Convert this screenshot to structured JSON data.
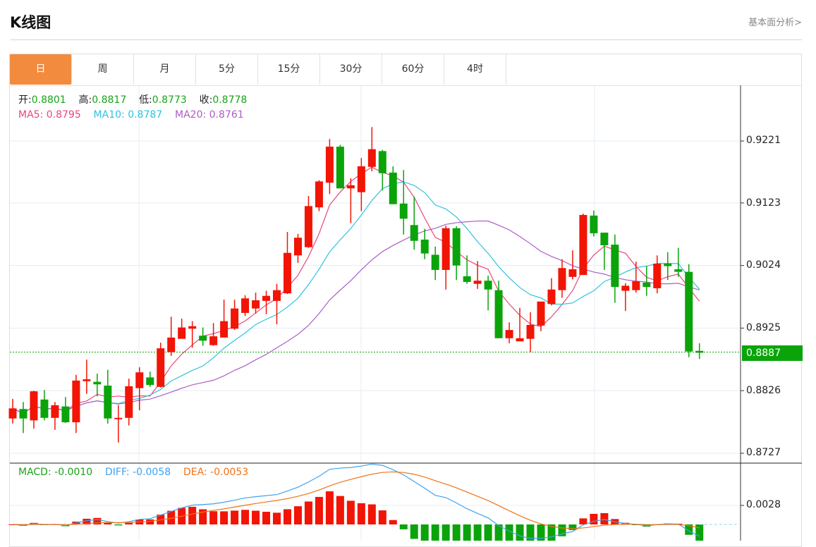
{
  "header": {
    "title": "K线图",
    "fundamental_link": "基本面分析>"
  },
  "tabs": [
    {
      "label": "日",
      "active": true
    },
    {
      "label": "周"
    },
    {
      "label": "月"
    },
    {
      "label": "5分"
    },
    {
      "label": "15分"
    },
    {
      "label": "30分"
    },
    {
      "label": "60分"
    },
    {
      "label": "4时"
    }
  ],
  "info": {
    "open_label": "开:",
    "open": "0.8801",
    "high_label": "高:",
    "high": "0.8817",
    "low_label": "低:",
    "low": "0.8773",
    "close_label": "收:",
    "close": "0.8778",
    "ma5_label": "MA5: ",
    "ma5": "0.8795",
    "ma10_label": "MA10: ",
    "ma10": "0.8787",
    "ma20_label": "MA20: ",
    "ma20": "0.8761"
  },
  "macd_info": {
    "macd_label": "MACD: ",
    "macd": "-0.0010",
    "diff_label": "DIFF: ",
    "diff": "-0.0058",
    "dea_label": "DEA: ",
    "dea": "-0.0053"
  },
  "colors": {
    "up": "#f21405",
    "down": "#0aa40a",
    "ma5": "#e8467c",
    "ma10": "#2ec3de",
    "ma20": "#b05cc6",
    "diff": "#3fa2ee",
    "dea": "#f07214",
    "accent": "#f38b3e"
  },
  "chart_data": {
    "type": "candlestick",
    "price_ticks": [
      "0.9221",
      "0.9123",
      "0.9024",
      "0.8925",
      "0.8826",
      "0.8727"
    ],
    "macd_ticks": [
      "0.0028"
    ],
    "current_price": "0.8887",
    "ylim": [
      0.8727,
      0.9221
    ],
    "ohlc": [
      [
        0.8782,
        0.8813,
        0.8774,
        0.8798
      ],
      [
        0.8797,
        0.8808,
        0.8759,
        0.8782
      ],
      [
        0.8779,
        0.8826,
        0.8766,
        0.8825
      ],
      [
        0.8812,
        0.8827,
        0.8779,
        0.8783
      ],
      [
        0.8783,
        0.8808,
        0.8764,
        0.8803
      ],
      [
        0.8801,
        0.8816,
        0.8775,
        0.8776
      ],
      [
        0.8776,
        0.8851,
        0.8759,
        0.8842
      ],
      [
        0.8841,
        0.8875,
        0.8821,
        0.8844
      ],
      [
        0.884,
        0.8853,
        0.8817,
        0.8836
      ],
      [
        0.8834,
        0.8859,
        0.8774,
        0.8782
      ],
      [
        0.8781,
        0.8803,
        0.8744,
        0.8783
      ],
      [
        0.8783,
        0.8845,
        0.8771,
        0.8833
      ],
      [
        0.883,
        0.8863,
        0.8795,
        0.8855
      ],
      [
        0.8847,
        0.8856,
        0.8832,
        0.8835
      ],
      [
        0.8832,
        0.8902,
        0.8831,
        0.8893
      ],
      [
        0.8887,
        0.8943,
        0.8881,
        0.891
      ],
      [
        0.8908,
        0.894,
        0.8909,
        0.8926
      ],
      [
        0.8924,
        0.8936,
        0.8894,
        0.8928
      ],
      [
        0.8913,
        0.8926,
        0.8897,
        0.8905
      ],
      [
        0.8898,
        0.8933,
        0.8897,
        0.8912
      ],
      [
        0.891,
        0.897,
        0.8913,
        0.8936
      ],
      [
        0.8924,
        0.897,
        0.8922,
        0.8956
      ],
      [
        0.8949,
        0.8977,
        0.8944,
        0.8972
      ],
      [
        0.8956,
        0.8981,
        0.8948,
        0.8969
      ],
      [
        0.8968,
        0.8984,
        0.8947,
        0.8976
      ],
      [
        0.8968,
        0.8995,
        0.8931,
        0.8985
      ],
      [
        0.898,
        0.9077,
        0.8979,
        0.9044
      ],
      [
        0.904,
        0.9074,
        0.9028,
        0.9068
      ],
      [
        0.9053,
        0.9134,
        0.9052,
        0.9118
      ],
      [
        0.9116,
        0.9159,
        0.911,
        0.9157
      ],
      [
        0.9155,
        0.9224,
        0.9137,
        0.9212
      ],
      [
        0.9212,
        0.9215,
        0.9146,
        0.9146
      ],
      [
        0.9146,
        0.9162,
        0.9091,
        0.9151
      ],
      [
        0.914,
        0.9194,
        0.911,
        0.9181
      ],
      [
        0.918,
        0.9243,
        0.9173,
        0.9208
      ],
      [
        0.9205,
        0.9207,
        0.9143,
        0.917
      ],
      [
        0.9171,
        0.9181,
        0.9121,
        0.9121
      ],
      [
        0.9122,
        0.9175,
        0.9073,
        0.9098
      ],
      [
        0.9088,
        0.9133,
        0.9049,
        0.9063
      ],
      [
        0.9065,
        0.9082,
        0.9034,
        0.9043
      ],
      [
        0.9041,
        0.9054,
        0.9001,
        0.9017
      ],
      [
        0.9017,
        0.9087,
        0.8986,
        0.9083
      ],
      [
        0.9083,
        0.9086,
        0.9001,
        0.9024
      ],
      [
        0.9007,
        0.904,
        0.8995,
        0.8998
      ],
      [
        0.8995,
        0.9031,
        0.8987,
        0.9
      ],
      [
        0.9,
        0.9008,
        0.8953,
        0.8986
      ],
      [
        0.8985,
        0.9,
        0.8909,
        0.8909
      ],
      [
        0.8909,
        0.8934,
        0.8901,
        0.8922
      ],
      [
        0.8904,
        0.8957,
        0.8904,
        0.8909
      ],
      [
        0.8908,
        0.895,
        0.8887,
        0.893
      ],
      [
        0.8929,
        0.8967,
        0.892,
        0.8967
      ],
      [
        0.8963,
        0.9004,
        0.8961,
        0.8986
      ],
      [
        0.8985,
        0.9034,
        0.8973,
        0.902
      ],
      [
        0.9006,
        0.9048,
        0.9002,
        0.9018
      ],
      [
        0.9009,
        0.9106,
        0.9009,
        0.9104
      ],
      [
        0.9103,
        0.9111,
        0.907,
        0.9075
      ],
      [
        0.9076,
        0.9076,
        0.9017,
        0.9056
      ],
      [
        0.9057,
        0.9073,
        0.8965,
        0.899
      ],
      [
        0.8984,
        0.8996,
        0.8952,
        0.8992
      ],
      [
        0.8985,
        0.903,
        0.8981,
        0.8999
      ],
      [
        0.8997,
        0.9023,
        0.8976,
        0.899
      ],
      [
        0.8988,
        0.904,
        0.898,
        0.9027
      ],
      [
        0.9027,
        0.9045,
        0.9001,
        0.9023
      ],
      [
        0.9018,
        0.9052,
        0.9006,
        0.9014
      ],
      [
        0.9014,
        0.9026,
        0.8879,
        0.8888
      ],
      [
        0.8889,
        0.8901,
        0.8876,
        0.8886
      ]
    ]
  }
}
